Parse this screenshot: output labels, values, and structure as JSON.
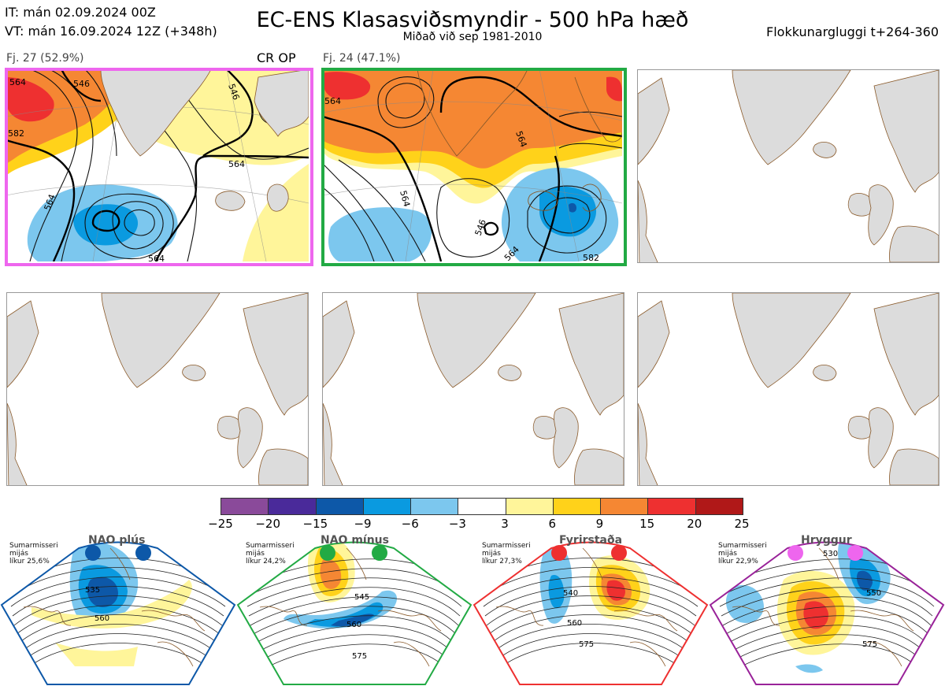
{
  "header": {
    "init_time": "IT: mán 02.09.2024 00Z",
    "valid_time": "VT: mán 16.09.2024 12Z  (+348h)",
    "title": "EC-ENS Klasasviðsmyndir - 500 hPa hæð",
    "subtitle": "Miðað við sep 1981-2010",
    "cluster_window": "Flokkunargluggi t+264-360"
  },
  "panels": [
    {
      "label": "Fj. 27 (52.9%)",
      "tag": "CR OP",
      "border": "#ee66ee",
      "contours": [
        "564",
        "546",
        "546",
        "564",
        "564",
        "582",
        "564"
      ]
    },
    {
      "label": "Fj. 24 (47.1%)",
      "tag": "",
      "border": "#22aa44",
      "contours": [
        "564",
        "564",
        "564",
        "546",
        "564",
        "582"
      ]
    }
  ],
  "colorbar": {
    "colors": [
      "#8a4a9a",
      "#4a2a9a",
      "#0d58a8",
      "#0a9ae0",
      "#7cc7ee",
      "#ffffff",
      "#fff59a",
      "#ffd21a",
      "#f58733",
      "#ee3030",
      "#b01818"
    ],
    "ticks": [
      "−25",
      "−20",
      "−15",
      "−9",
      "−6",
      "−3",
      "3",
      "6",
      "9",
      "15",
      "20",
      "25"
    ]
  },
  "regimes": [
    {
      "title": "NAO plús",
      "season": "Sumarmisseri",
      "note": "mijás",
      "likelihood": "líkur 25,6%",
      "dot": "#0d58a8",
      "frame": "#0d58a8",
      "labels": [
        "535",
        "560"
      ]
    },
    {
      "title": "NAO mínus",
      "season": "Sumarmisseri",
      "note": "mijás",
      "likelihood": "líkur 24,2%",
      "dot": "#22aa44",
      "frame": "#22aa44",
      "labels": [
        "545",
        "560",
        "575"
      ]
    },
    {
      "title": "Fyrirstaða",
      "season": "Sumarmisseri",
      "note": "mijás",
      "likelihood": "líkur 27,3%",
      "dot": "#ee3030",
      "frame": "#ee3030",
      "labels": [
        "540",
        "560",
        "575"
      ]
    },
    {
      "title": "Hryggur",
      "season": "Sumarmisseri",
      "note": "mijás",
      "likelihood": "líkur 22,9%",
      "dot": "#ee66ee",
      "frame": "#992299",
      "labels": [
        "530",
        "550",
        "575"
      ]
    }
  ],
  "chart_data": {
    "type": "heatmap",
    "title": "EC-ENS Klasasviðsmyndir - 500 hPa hæð",
    "subtitle": "Miðað við sep 1981-2010",
    "clusters": [
      {
        "name": "Fj. 27",
        "members": 27,
        "percent": 52.9,
        "note": "CR OP"
      },
      {
        "name": "Fj. 24",
        "members": 24,
        "percent": 47.1
      }
    ],
    "colorbar_levels": [
      -25,
      -20,
      -15,
      -9,
      -6,
      -3,
      3,
      6,
      9,
      15,
      20,
      25
    ],
    "regimes": [
      {
        "name": "NAO plús",
        "likelihood_percent": 25.6
      },
      {
        "name": "NAO mínus",
        "likelihood_percent": 24.2
      },
      {
        "name": "Fyrirstaða",
        "likelihood_percent": 27.3
      },
      {
        "name": "Hryggur",
        "likelihood_percent": 22.9
      }
    ]
  }
}
